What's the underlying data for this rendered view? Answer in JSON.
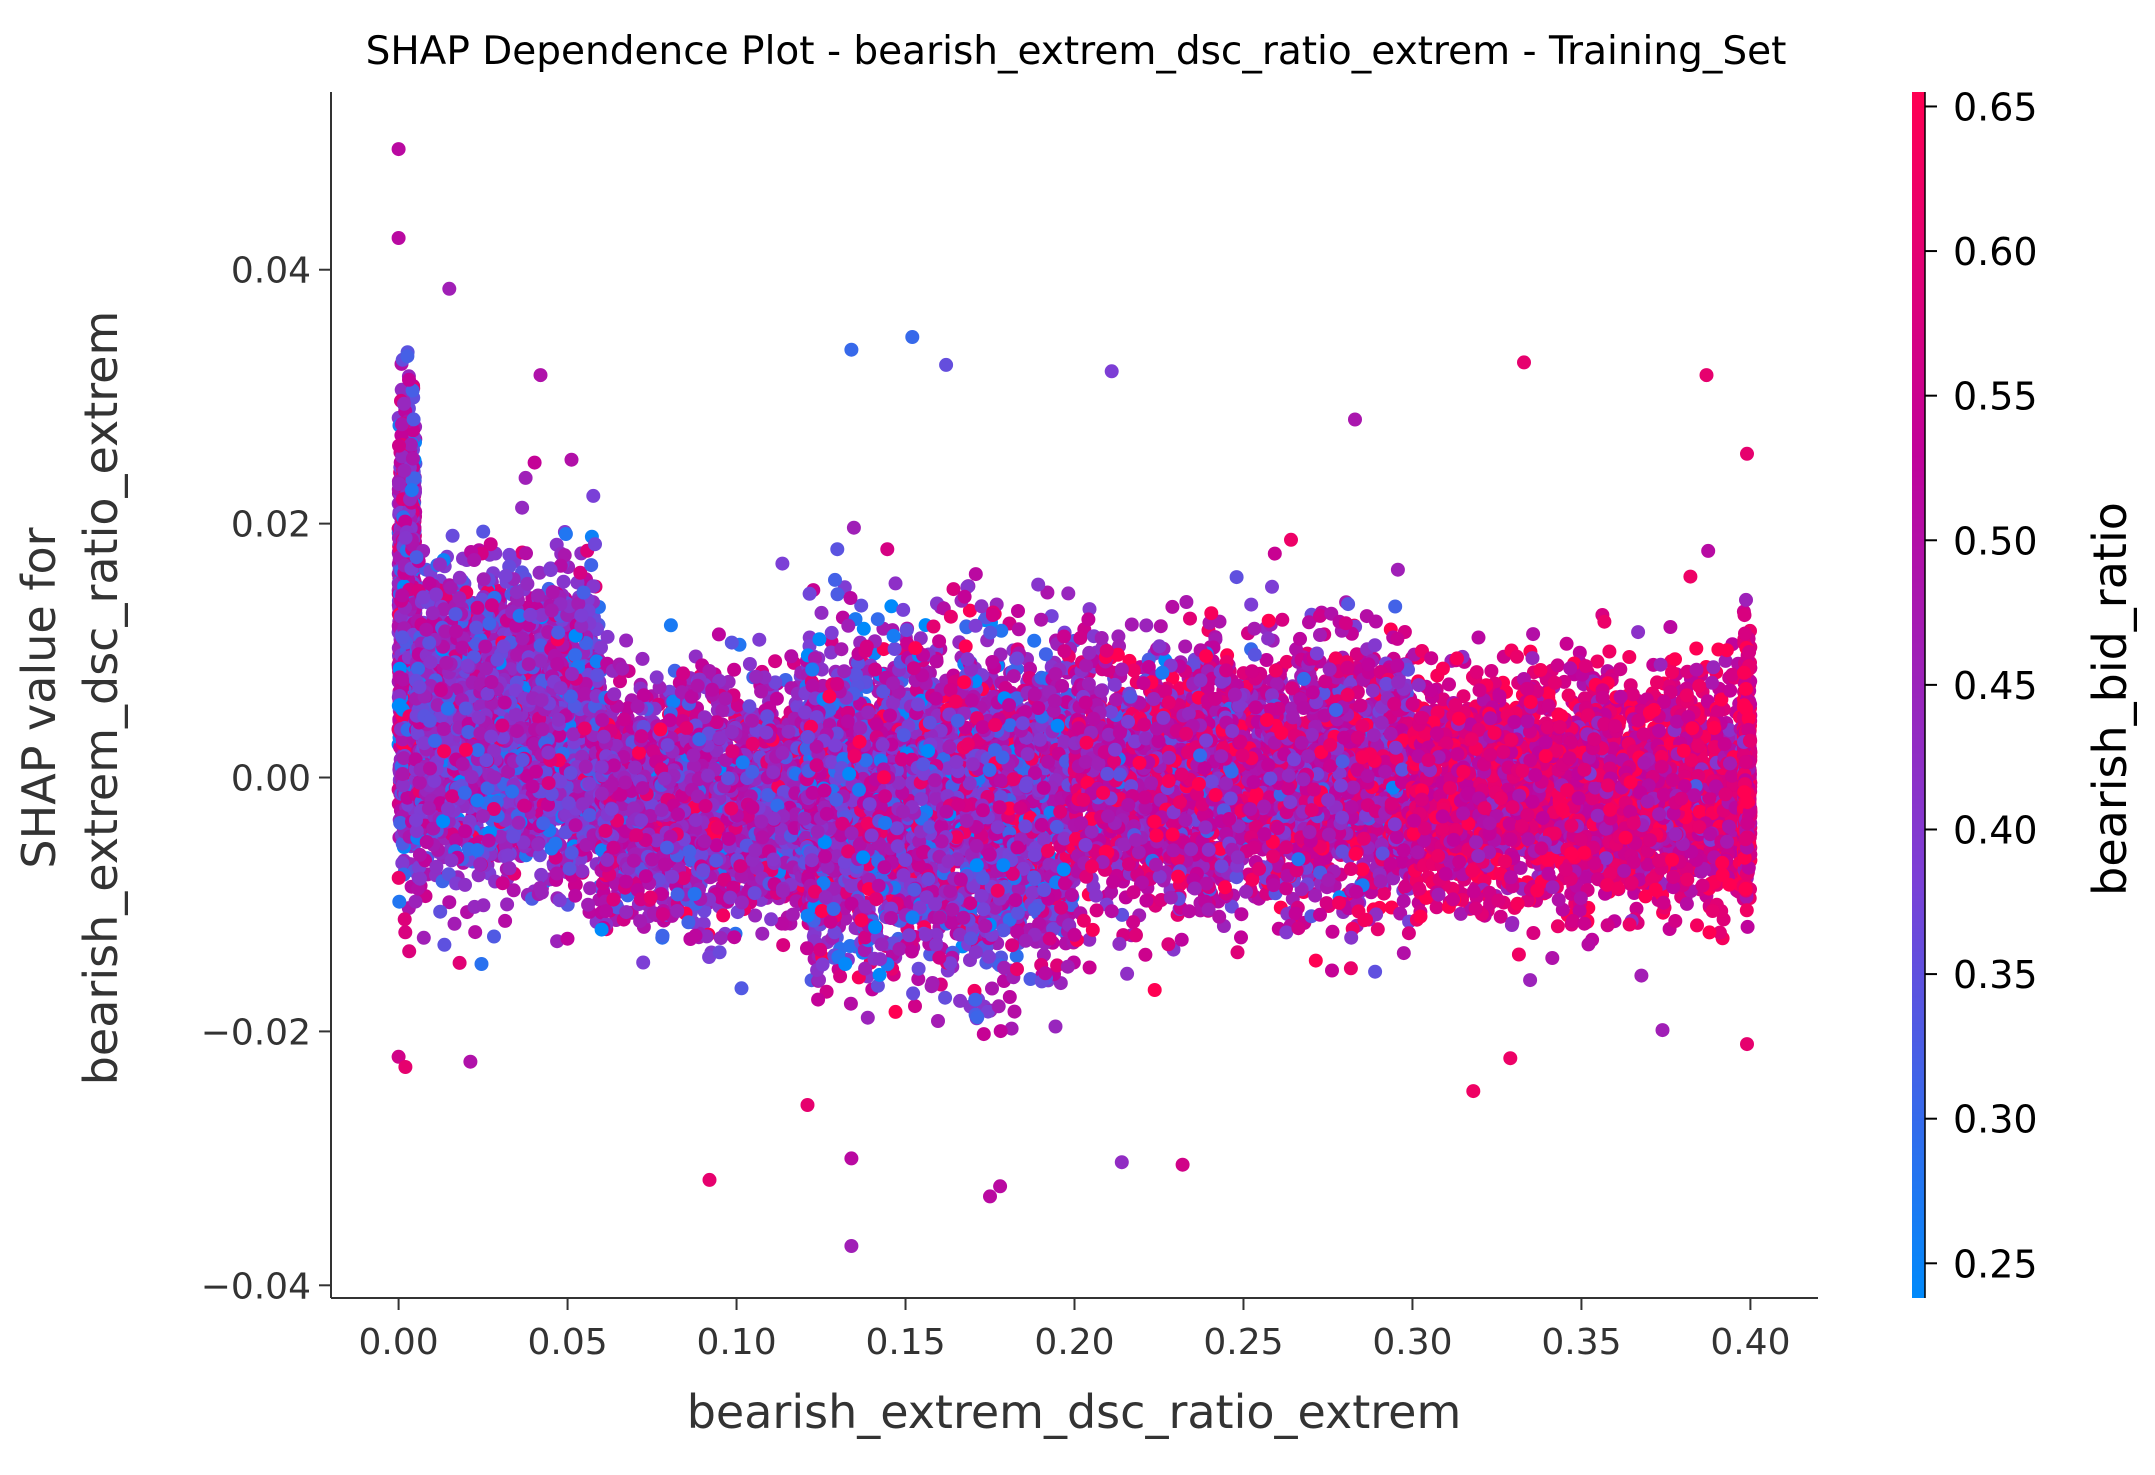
{
  "chart_data": {
    "type": "scatter",
    "title": "SHAP Dependence Plot - bearish_extrem_dsc_ratio_extrem - Training_Set",
    "xlabel": "bearish_extrem_dsc_ratio_extrem",
    "ylabel_line1": "SHAP value for",
    "ylabel_line2": "bearish_extrem_dsc_ratio_extrem",
    "xlim": [
      -0.02,
      0.42
    ],
    "ylim": [
      -0.041,
      0.054
    ],
    "xticks": [
      0.0,
      0.05,
      0.1,
      0.15,
      0.2,
      0.25,
      0.3,
      0.35,
      0.4
    ],
    "xtick_labels": [
      "0.00",
      "0.05",
      "0.10",
      "0.15",
      "0.20",
      "0.25",
      "0.30",
      "0.35",
      "0.40"
    ],
    "yticks": [
      -0.04,
      -0.02,
      0.0,
      0.02,
      0.04
    ],
    "ytick_labels": [
      "−0.04",
      "−0.02",
      "0.00",
      "0.02",
      "0.04"
    ],
    "grid": false,
    "colorbar": {
      "label": "bearish_bid_ratio",
      "range": [
        0.238,
        0.655
      ],
      "ticks": [
        0.25,
        0.3,
        0.35,
        0.4,
        0.45,
        0.5,
        0.55,
        0.6,
        0.65
      ],
      "tick_labels": [
        "0.25",
        "0.30",
        "0.35",
        "0.40",
        "0.45",
        "0.50",
        "0.55",
        "0.60",
        "0.65"
      ],
      "colors": [
        "#008afb",
        "#7c3fd6",
        "#c1029a",
        "#ff0052"
      ]
    },
    "highlight_points": [
      {
        "x": 0.0,
        "y": 0.0495,
        "c": 0.5
      },
      {
        "x": 0.0,
        "y": 0.0425,
        "c": 0.5
      },
      {
        "x": 0.015,
        "y": 0.0385,
        "c": 0.45
      },
      {
        "x": 0.042,
        "y": 0.0317,
        "c": 0.48
      },
      {
        "x": 0.134,
        "y": 0.0337,
        "c": 0.3
      },
      {
        "x": 0.152,
        "y": 0.0347,
        "c": 0.3
      },
      {
        "x": 0.162,
        "y": 0.0325,
        "c": 0.35
      },
      {
        "x": 0.211,
        "y": 0.032,
        "c": 0.38
      },
      {
        "x": 0.333,
        "y": 0.0327,
        "c": 0.6
      },
      {
        "x": 0.387,
        "y": 0.0317,
        "c": 0.6
      },
      {
        "x": 0.399,
        "y": 0.0255,
        "c": 0.6
      },
      {
        "x": 0.283,
        "y": 0.0282,
        "c": 0.47
      },
      {
        "x": 0.134,
        "y": -0.0369,
        "c": 0.45
      },
      {
        "x": 0.092,
        "y": -0.0317,
        "c": 0.6
      },
      {
        "x": 0.175,
        "y": -0.033,
        "c": 0.5
      },
      {
        "x": 0.178,
        "y": -0.0322,
        "c": 0.5
      },
      {
        "x": 0.232,
        "y": -0.0305,
        "c": 0.55
      },
      {
        "x": 0.214,
        "y": -0.0303,
        "c": 0.42
      },
      {
        "x": 0.318,
        "y": -0.0247,
        "c": 0.62
      },
      {
        "x": 0.399,
        "y": -0.021,
        "c": 0.6
      },
      {
        "x": 0.374,
        "y": -0.0199,
        "c": 0.45
      },
      {
        "x": 0.0,
        "y": -0.022,
        "c": 0.55
      },
      {
        "x": 0.002,
        "y": -0.0228,
        "c": 0.6
      },
      {
        "x": 0.134,
        "y": -0.03,
        "c": 0.5
      },
      {
        "x": 0.121,
        "y": -0.0258,
        "c": 0.6
      }
    ],
    "bulk_regions": [
      {
        "x": [
          0.0,
          0.005
        ],
        "y_mean": 0.012,
        "y_spread": 0.014,
        "c_mean": 0.45,
        "c_spread": 0.1,
        "count": 1400
      },
      {
        "x": [
          0.005,
          0.06
        ],
        "y_mean": 0.004,
        "y_spread": 0.01,
        "c_mean": 0.42,
        "c_spread": 0.08,
        "count": 3000
      },
      {
        "x": [
          0.06,
          0.12
        ],
        "y_mean": -0.002,
        "y_spread": 0.008,
        "c_mean": 0.45,
        "c_spread": 0.08,
        "count": 2200
      },
      {
        "x": [
          0.12,
          0.2
        ],
        "y_mean": -0.002,
        "y_spread": 0.011,
        "c_mean": 0.44,
        "c_spread": 0.1,
        "count": 3600
      },
      {
        "x": [
          0.2,
          0.3
        ],
        "y_mean": 0.0,
        "y_spread": 0.009,
        "c_mean": 0.5,
        "c_spread": 0.09,
        "count": 3200
      },
      {
        "x": [
          0.3,
          0.398
        ],
        "y_mean": -0.001,
        "y_spread": 0.008,
        "c_mean": 0.56,
        "c_spread": 0.07,
        "count": 2800
      },
      {
        "x": [
          0.398,
          0.4
        ],
        "y_mean": 0.0,
        "y_spread": 0.008,
        "c_mean": 0.58,
        "c_spread": 0.06,
        "count": 500
      }
    ]
  }
}
